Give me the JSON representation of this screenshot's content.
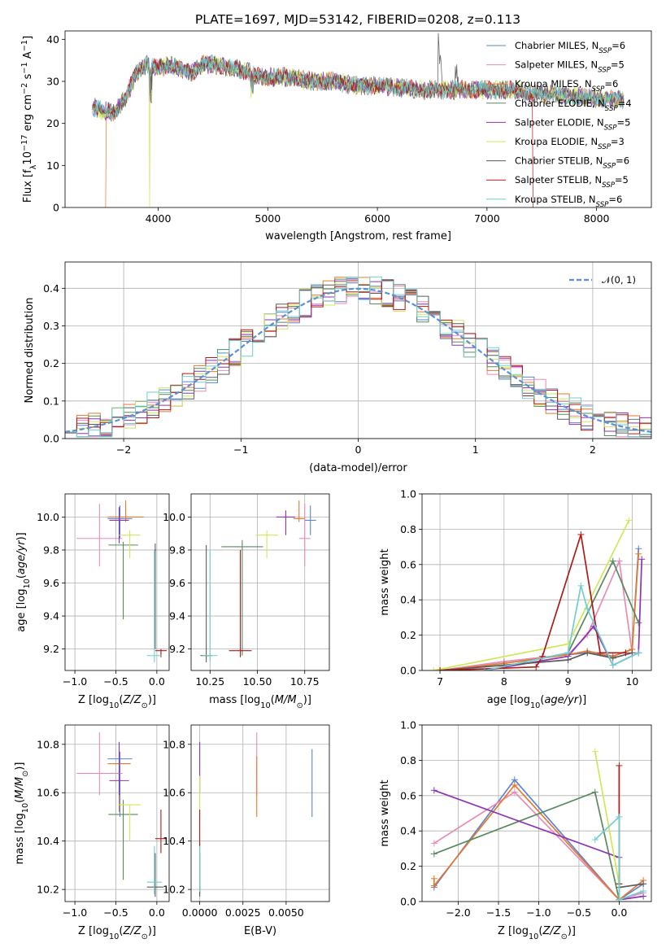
{
  "title": "PLATE=1697, MJD=53142, FIBERID=0208, z=0.113",
  "series_names": [
    "Chabrier MILES, N_SSP=6",
    "Salpeter MILES, N_SSP=5",
    "Kroupa MILES, N_SSP=6",
    "Chabrier ELODIE, N_SSP=4",
    "Salpeter ELODIE, N_SSP=5",
    "Kroupa ELODIE, N_SSP=3",
    "Chabrier STELIB, N_SSP=6",
    "Salpeter STELIB, N_SSP=5",
    "Kroupa STELIB, N_SSP=6"
  ],
  "colors": [
    "#5b84d6",
    "#e98bb7",
    "#e7792c",
    "#5a8a5e",
    "#8e33b3",
    "#cfe85a",
    "#5c5c5c",
    "#b01a1a",
    "#6fcfcf"
  ],
  "legend_series": [
    {
      "base": "Chabrier MILES, N",
      "sub": "SSP",
      "tail": "=6"
    },
    {
      "base": "Salpeter MILES, N",
      "sub": "SSP",
      "tail": "=5"
    },
    {
      "base": "Kroupa MILES, N",
      "sub": "SSP",
      "tail": "=6"
    },
    {
      "base": "Chabrier ELODIE, N",
      "sub": "SSP",
      "tail": "=4"
    },
    {
      "base": "Salpeter ELODIE, N",
      "sub": "SSP",
      "tail": "=5"
    },
    {
      "base": "Kroupa ELODIE, N",
      "sub": "SSP",
      "tail": "=3"
    },
    {
      "base": "Chabrier STELIB, N",
      "sub": "SSP",
      "tail": "=6"
    },
    {
      "base": "Salpeter STELIB, N",
      "sub": "SSP",
      "tail": "=5"
    },
    {
      "base": "Kroupa STELIB, N",
      "sub": "SSP",
      "tail": "=6"
    }
  ],
  "labels": {
    "spec_x": "wavelength [Angstrom, rest frame]",
    "spec_y": "Flux [f_λ 10^-17 erg cm^-2 s^-1 A^-1]",
    "res_x": "(data-model)/error",
    "res_y": "Normed distribution",
    "res_legend": "𝒩(0, 1)",
    "age_y": "age  [log10(age/yr)]",
    "z_x": "Z [log10(Z/Z☉)]",
    "mass_x": "mass [log10(M/M☉)]",
    "mw_y": "mass weight",
    "age_x": "age  [log10(age/yr)]",
    "mass_y": "mass [log10(M/M☉)]",
    "ebv_x": "E(B-V)"
  },
  "chart_data": [
    {
      "type": "line",
      "name": "spectrum",
      "xlim": [
        3150,
        8500
      ],
      "ylim": [
        0,
        42
      ],
      "xticks": [
        4000,
        5000,
        6000,
        7000,
        8000
      ],
      "yticks": [
        0,
        10,
        20,
        30,
        40
      ],
      "continuum": [
        [
          3400,
          24
        ],
        [
          3500,
          23
        ],
        [
          3600,
          22.5
        ],
        [
          3700,
          26
        ],
        [
          3800,
          32
        ],
        [
          3900,
          34
        ],
        [
          4000,
          33
        ],
        [
          4100,
          34
        ],
        [
          4200,
          33
        ],
        [
          4300,
          32
        ],
        [
          4400,
          34
        ],
        [
          4500,
          34
        ],
        [
          4600,
          33.5
        ],
        [
          4700,
          33
        ],
        [
          4800,
          32.5
        ],
        [
          4900,
          31
        ],
        [
          5000,
          31
        ],
        [
          5200,
          31
        ],
        [
          5400,
          30
        ],
        [
          5600,
          30
        ],
        [
          5800,
          29
        ],
        [
          6000,
          29
        ],
        [
          6200,
          28.5
        ],
        [
          6400,
          28
        ],
        [
          6600,
          28
        ],
        [
          6800,
          28
        ],
        [
          7000,
          28
        ],
        [
          7200,
          28
        ],
        [
          7400,
          27
        ],
        [
          7600,
          27
        ],
        [
          7800,
          26.5
        ],
        [
          8000,
          26
        ],
        [
          8250,
          25.5
        ]
      ],
      "lowest_points": {
        "Kroupa MILES": [
          3520,
          0
        ],
        "Kroupa ELODIE": [
          3920,
          0
        ],
        "Salpeter STELIB": [
          7420,
          0
        ]
      }
    },
    {
      "type": "bar",
      "name": "residual histogram",
      "xlim": [
        -2.5,
        2.5
      ],
      "ylim": [
        0,
        0.47
      ],
      "xticks": [
        -2,
        -1,
        0,
        1,
        2
      ],
      "yticks": [
        0.0,
        0.1,
        0.2,
        0.3,
        0.4
      ],
      "bin_width": 0.1,
      "gaussian": {
        "mean": 0,
        "sigma": 1
      }
    },
    {
      "type": "scatter",
      "name": "age vs Z",
      "xlim": [
        -1.12,
        0.15
      ],
      "ylim": [
        9.07,
        10.14
      ],
      "xticks": [
        -1.0,
        -0.5,
        0.0
      ],
      "yticks": [
        9.2,
        9.4,
        9.6,
        9.8,
        10.0
      ],
      "points": [
        {
          "x": -0.45,
          "y": 9.99,
          "xerr": 0.15,
          "ylo": 9.87,
          "yhi": 10.07
        },
        {
          "x": -0.7,
          "y": 9.87,
          "xerr": 0.28,
          "ylo": 9.7,
          "yhi": 10.08
        },
        {
          "x": -0.38,
          "y": 10.0,
          "xerr": 0.22,
          "ylo": 9.97,
          "yhi": 10.1
        },
        {
          "x": -0.41,
          "y": 9.83,
          "xerr": 0.18,
          "ylo": 9.38,
          "yhi": 9.85
        },
        {
          "x": -0.46,
          "y": 9.98,
          "xerr": 0.12,
          "ylo": 9.84,
          "yhi": 10.06
        },
        {
          "x": -0.33,
          "y": 9.89,
          "xerr": 0.13,
          "ylo": 9.75,
          "yhi": 9.92
        },
        {
          "x": -0.02,
          "y": 9.8,
          "xerr": 0.01,
          "ylo": 9.2,
          "yhi": 9.84
        },
        {
          "x": 0.05,
          "y": 9.19,
          "xerr": 0.07,
          "ylo": 9.15,
          "yhi": 9.2
        },
        {
          "x": -0.03,
          "y": 9.16,
          "xerr": 0.09,
          "ylo": 9.12,
          "yhi": 9.8
        }
      ]
    },
    {
      "type": "scatter",
      "name": "age vs mass",
      "xlim": [
        10.15,
        10.88
      ],
      "ylim": [
        9.07,
        10.14
      ],
      "xticks": [
        10.25,
        10.5,
        10.75
      ],
      "yticks": [
        9.2,
        9.4,
        9.6,
        9.8,
        10.0
      ],
      "points": [
        {
          "x": 10.78,
          "y": 9.98,
          "xerr": 0.03,
          "ylo": 9.89,
          "yhi": 10.07
        },
        {
          "x": 10.75,
          "y": 9.87,
          "xerr": 0.03,
          "ylo": 9.7,
          "yhi": 10.08
        },
        {
          "x": 10.72,
          "y": 9.99,
          "xerr": 0.03,
          "ylo": 9.97,
          "yhi": 10.1
        },
        {
          "x": 10.42,
          "y": 9.82,
          "xerr": 0.11,
          "ylo": 9.16,
          "yhi": 9.86
        },
        {
          "x": 10.65,
          "y": 10.0,
          "xerr": 0.05,
          "ylo": 9.89,
          "yhi": 10.04
        },
        {
          "x": 10.55,
          "y": 9.89,
          "xerr": 0.06,
          "ylo": 9.75,
          "yhi": 9.92
        },
        {
          "x": 10.23,
          "y": 9.16,
          "xerr": 0.03,
          "ylo": 9.12,
          "yhi": 9.83
        },
        {
          "x": 10.41,
          "y": 9.19,
          "xerr": 0.06,
          "ylo": 9.15,
          "yhi": 9.8
        },
        {
          "x": 10.25,
          "y": 9.16,
          "xerr": 0.04,
          "ylo": 9.12,
          "yhi": 9.8
        }
      ]
    },
    {
      "type": "line",
      "name": "mass weight vs age",
      "xlim": [
        6.72,
        10.3
      ],
      "ylim": [
        0,
        1
      ],
      "xticks": [
        7,
        8,
        9,
        10
      ],
      "yticks": [
        0.0,
        0.2,
        0.4,
        0.6,
        0.8,
        1.0
      ],
      "series": [
        {
          "x": [
            7.0,
            8.0,
            9.0,
            9.3,
            9.7,
            10.0,
            10.1
          ],
          "y": [
            0.0,
            0.05,
            0.09,
            0.1,
            0.08,
            0.12,
            0.69
          ]
        },
        {
          "x": [
            7.0,
            8.0,
            9.0,
            9.3,
            9.8,
            10.0
          ],
          "y": [
            0.0,
            0.05,
            0.09,
            0.2,
            0.62,
            0.1
          ]
        },
        {
          "x": [
            7.0,
            8.0,
            9.0,
            9.3,
            9.7,
            10.0,
            10.1
          ],
          "y": [
            0.0,
            0.04,
            0.09,
            0.11,
            0.08,
            0.12,
            0.66
          ]
        },
        {
          "x": [
            7.7,
            9.0,
            9.7,
            10.1
          ],
          "y": [
            0.0,
            0.1,
            0.62,
            0.27
          ]
        },
        {
          "x": [
            7.7,
            9.0,
            9.4,
            9.7,
            10.1,
            10.15
          ],
          "y": [
            0.0,
            0.08,
            0.25,
            0.03,
            0.1,
            0.63
          ]
        },
        {
          "x": [
            6.9,
            9.0,
            9.95
          ],
          "y": [
            0.0,
            0.15,
            0.85
          ]
        },
        {
          "x": [
            7.0,
            8.0,
            9.0,
            9.3,
            9.7,
            10.0
          ],
          "y": [
            0.0,
            0.03,
            0.06,
            0.1,
            0.07,
            0.1
          ]
        },
        {
          "x": [
            7.0,
            8.5,
            8.6,
            9.2,
            9.5,
            9.9
          ],
          "y": [
            0.0,
            0.02,
            0.08,
            0.77,
            0.1,
            0.1
          ]
        },
        {
          "x": [
            7.7,
            9.0,
            9.2,
            9.3,
            9.7,
            10.1
          ],
          "y": [
            0.0,
            0.1,
            0.48,
            0.35,
            0.03,
            0.1
          ]
        }
      ]
    },
    {
      "type": "scatter",
      "name": "mass vs Z",
      "xlim": [
        -1.12,
        0.15
      ],
      "ylim": [
        10.15,
        10.88
      ],
      "xticks": [
        -1.0,
        -0.5,
        0.0
      ],
      "yticks": [
        10.2,
        10.4,
        10.6,
        10.8
      ],
      "points": [
        {
          "x": -0.45,
          "y": 10.74,
          "xerr": 0.15,
          "ylo": 10.5,
          "yhi": 10.77
        },
        {
          "x": -0.7,
          "y": 10.68,
          "xerr": 0.28,
          "ylo": 10.59,
          "yhi": 10.85
        },
        {
          "x": -0.46,
          "y": 10.72,
          "xerr": 0.14,
          "ylo": 10.52,
          "yhi": 10.77
        },
        {
          "x": -0.41,
          "y": 10.51,
          "xerr": 0.18,
          "ylo": 10.24,
          "yhi": 10.57
        },
        {
          "x": -0.46,
          "y": 10.65,
          "xerr": 0.12,
          "ylo": 10.59,
          "yhi": 10.81
        },
        {
          "x": -0.33,
          "y": 10.55,
          "xerr": 0.13,
          "ylo": 10.4,
          "yhi": 10.55
        },
        {
          "x": -0.02,
          "y": 10.21,
          "xerr": 0.1,
          "ylo": 10.17,
          "yhi": 10.35
        },
        {
          "x": 0.05,
          "y": 10.41,
          "xerr": 0.07,
          "ylo": 10.35,
          "yhi": 10.53
        },
        {
          "x": -0.03,
          "y": 10.23,
          "xerr": 0.09,
          "ylo": 10.18,
          "yhi": 10.38
        }
      ]
    },
    {
      "type": "scatter",
      "name": "mass vs E(B-V)",
      "xlim": [
        -0.0005,
        0.0075
      ],
      "ylim": [
        10.15,
        10.88
      ],
      "xticks": [
        0.0,
        0.0025,
        0.005
      ],
      "xticklabels": [
        "0.0000",
        "0.0025",
        "0.0050"
      ],
      "yticks": [
        10.2,
        10.4,
        10.6,
        10.8
      ],
      "points": [
        {
          "x": 0.0065,
          "y": 10.65,
          "ylo": 10.5,
          "yhi": 10.78
        },
        {
          "x": 0.0033,
          "y": 10.75,
          "ylo": 10.59,
          "yhi": 10.85
        },
        {
          "x": 0.0033,
          "y": 10.62,
          "ylo": 10.5,
          "yhi": 10.75
        },
        {
          "x": 0.0,
          "y": 10.3,
          "ylo": 10.18,
          "yhi": 10.39
        },
        {
          "x": 0.0,
          "y": 10.7,
          "ylo": 10.6,
          "yhi": 10.81
        },
        {
          "x": 0.0,
          "y": 10.6,
          "ylo": 10.5,
          "yhi": 10.67
        },
        {
          "x": 0.0,
          "y": 10.25,
          "ylo": 10.17,
          "yhi": 10.35
        },
        {
          "x": 0.0,
          "y": 10.45,
          "ylo": 10.38,
          "yhi": 10.53
        },
        {
          "x": 0.0,
          "y": 10.28,
          "ylo": 10.19,
          "yhi": 10.38
        }
      ]
    },
    {
      "type": "line",
      "name": "mass weight vs Z",
      "xlim": [
        -2.45,
        0.4
      ],
      "ylim": [
        0,
        1
      ],
      "xticks": [
        -2.0,
        -1.5,
        -1.0,
        -0.5,
        0.0
      ],
      "yticks": [
        0.0,
        0.2,
        0.4,
        0.6,
        0.8,
        1.0
      ],
      "series": [
        {
          "x": [
            -2.3,
            -1.3,
            0.0,
            0.3
          ],
          "y": [
            0.08,
            0.69,
            0.01,
            0.1
          ]
        },
        {
          "x": [
            -2.3,
            -1.3,
            0.0,
            0.3
          ],
          "y": [
            0.33,
            0.62,
            0.01,
            0.05
          ]
        },
        {
          "x": [
            -2.3,
            -2.3,
            -1.3,
            0.0,
            0.3
          ],
          "y": [
            0.13,
            0.09,
            0.66,
            0.01,
            0.12
          ]
        },
        {
          "x": [
            -2.3,
            -0.3,
            0.0
          ],
          "y": [
            0.27,
            0.62,
            0.01
          ]
        },
        {
          "x": [
            -2.3,
            0.0,
            0.0,
            0.3
          ],
          "y": [
            0.63,
            0.25,
            0.01,
            0.03
          ]
        },
        {
          "x": [
            -0.3,
            0.0,
            0.0
          ],
          "y": [
            0.85,
            0.1,
            0.01
          ]
        },
        {
          "x": [
            0.0,
            0.0,
            0.3
          ],
          "y": [
            0.1,
            0.08,
            0.1
          ]
        },
        {
          "x": [
            0.0,
            0.0
          ],
          "y": [
            0.77,
            0.1
          ]
        },
        {
          "x": [
            -0.3,
            0.0,
            0.0,
            0.3
          ],
          "y": [
            0.35,
            0.48,
            0.01,
            0.06
          ]
        }
      ]
    }
  ]
}
